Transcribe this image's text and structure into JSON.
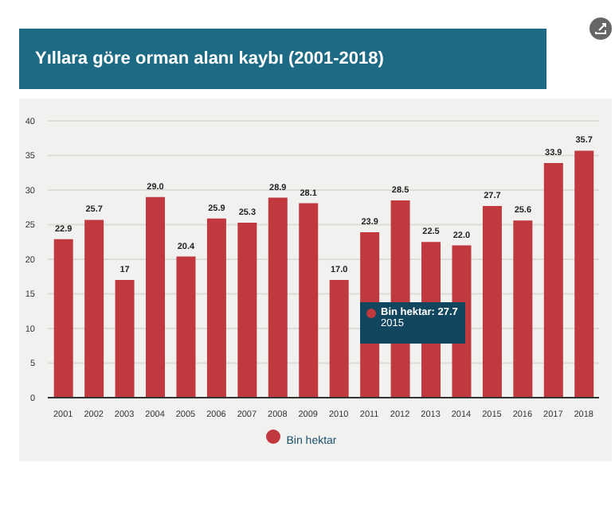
{
  "chart_data": {
    "type": "bar",
    "title": "Yıllara göre orman alanı kaybı (2001-2018)",
    "categories": [
      "2001",
      "2002",
      "2003",
      "2004",
      "2005",
      "2006",
      "2007",
      "2008",
      "2009",
      "2010",
      "2011",
      "2012",
      "2013",
      "2014",
      "2015",
      "2016",
      "2017",
      "2018"
    ],
    "series": [
      {
        "name": "Bin hektar",
        "color": "#c0393f",
        "values": [
          22.9,
          25.7,
          17,
          29.0,
          20.4,
          25.9,
          25.3,
          28.9,
          28.1,
          17.0,
          23.9,
          28.5,
          22.5,
          22.0,
          27.7,
          25.6,
          33.9,
          35.7
        ]
      }
    ],
    "value_labels": [
      "22.9",
      "25.7",
      "17",
      "29.0",
      "20.4",
      "25.9",
      "25.3",
      "28.9",
      "28.1",
      "17.0",
      "23.9",
      "28.5",
      "22.5",
      "22.0",
      "27.7",
      "25.6",
      "33.9",
      "35.7"
    ],
    "ylim": [
      0,
      40
    ],
    "yticks": [
      0,
      5,
      10,
      15,
      20,
      25,
      30,
      35,
      40
    ],
    "grid": "y",
    "legend": "bottom",
    "annotations": [
      "Bin hektar: 27.7",
      "2015"
    ]
  }
}
